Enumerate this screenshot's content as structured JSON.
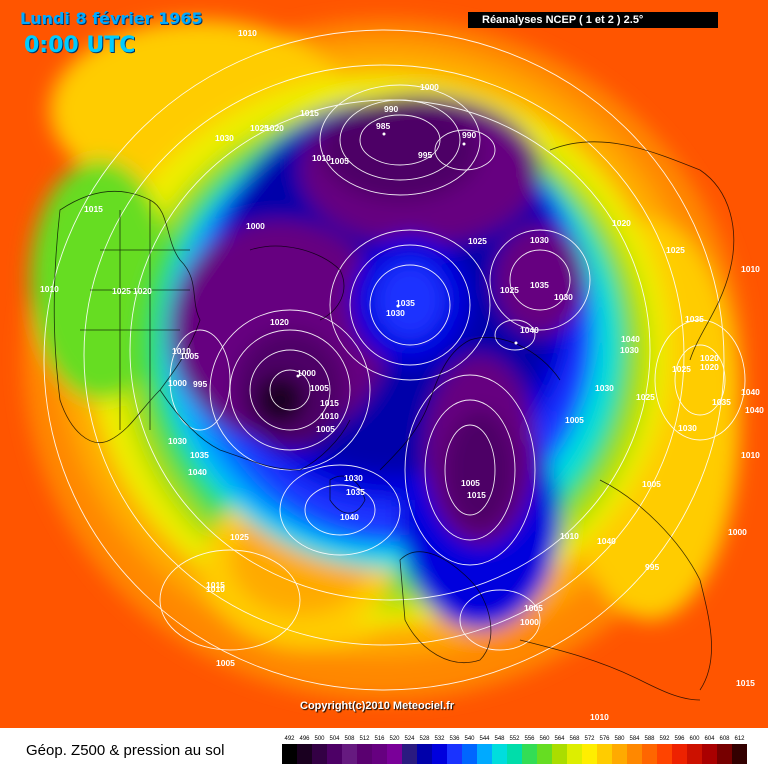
{
  "map": {
    "title": "Lundi 8 février 1965",
    "time": "0:00 UTC",
    "source": "Réanalyses NCEP ( 1 et 2 ) 2.5°",
    "copyright": "Copyright(c)2010 Meteociel.fr",
    "footer_title": "Géop. Z500 & pression au sol",
    "scale_values": [
      "492",
      "496",
      "500",
      "504",
      "508",
      "512",
      "516",
      "520",
      "524",
      "528",
      "532",
      "536",
      "540",
      "544",
      "548",
      "552",
      "556",
      "560",
      "564",
      "568",
      "572",
      "576",
      "580",
      "584",
      "588",
      "592",
      "596",
      "600",
      "604",
      "608",
      "612"
    ],
    "scale_colors": [
      "#000000",
      "#1a0020",
      "#330044",
      "#4d0066",
      "#661a80",
      "#5a0070",
      "#660080",
      "#7a0099",
      "#2a1a80",
      "#0000aa",
      "#0000dd",
      "#1a33ff",
      "#0066ff",
      "#00aaff",
      "#00dddd",
      "#00ddaa",
      "#33dd55",
      "#66dd22",
      "#aadd00",
      "#ddee00",
      "#ffee00",
      "#ffcc00",
      "#ffaa00",
      "#ff8800",
      "#ff6600",
      "#ff4400",
      "#ee2200",
      "#cc1100",
      "#aa0000",
      "#770000",
      "#330000"
    ],
    "pressure_labels": [
      "1010",
      "1015",
      "1030",
      "1025",
      "1020",
      "990",
      "985",
      "1000",
      "990",
      "995",
      "1015",
      "1010",
      "1005",
      "1000",
      "1025",
      "1030",
      "1020",
      "1025",
      "1010",
      "1010",
      "1025",
      "1020",
      "1035",
      "1030",
      "1035",
      "1030",
      "1040",
      "1035",
      "1040",
      "1030",
      "1020",
      "1025",
      "1020",
      "1010",
      "995",
      "1005",
      "1000",
      "1020",
      "1000",
      "1005",
      "1015",
      "1010",
      "1005",
      "1030",
      "1025",
      "1040",
      "1035",
      "1030",
      "1040",
      "1035",
      "1040",
      "1030",
      "1010",
      "1035",
      "1030",
      "1040",
      "1005",
      "1005",
      "1015",
      "1025",
      "1040",
      "1005",
      "995",
      "1010",
      "1000",
      "1005",
      "1025",
      "1015",
      "1005",
      "1000",
      "1010",
      "1015",
      "1010"
    ]
  }
}
